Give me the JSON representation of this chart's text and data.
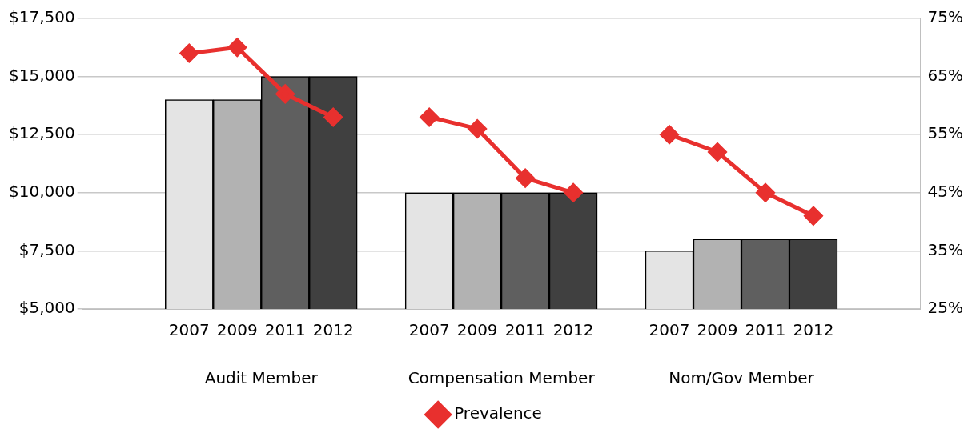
{
  "chart_data": {
    "type": "bar",
    "categories": [
      "2007",
      "2009",
      "2011",
      "2012",
      "2007",
      "2009",
      "2011",
      "2012",
      "2007",
      "2009",
      "2011",
      "2012"
    ],
    "annotations": [
      "Audit Member",
      "Compensation Member",
      "Nom/Gov Member"
    ],
    "series": [
      {
        "colors": [
          "#e4e4e4",
          "#b2b2b2",
          "#5f5f5f",
          "#404040",
          "#e4e4e4",
          "#b2b2b2",
          "#5f5f5f",
          "#404040",
          "#e4e4e4",
          "#b2b2b2",
          "#5f5f5f",
          "#404040"
        ],
        "values": [
          14000,
          14000,
          15000,
          15000,
          10000,
          10000,
          10000,
          10000,
          7500,
          8000,
          8000,
          8000
        ]
      },
      {
        "type": "line",
        "name": "Prevalence",
        "color": "#e8302e",
        "axis": "y2",
        "values": [
          69,
          70,
          62,
          58,
          58,
          56,
          47.5,
          45,
          55,
          52,
          45,
          41
        ]
      }
    ],
    "ylim": [
      5000,
      17500
    ],
    "yticks": [
      {
        "value": 5000,
        "label": "$5,000"
      },
      {
        "value": 7500,
        "label": "$7,500"
      },
      {
        "value": 10000,
        "label": "$10,000"
      },
      {
        "value": 12500,
        "label": "$12,500"
      },
      {
        "value": 15000,
        "label": "$15,000"
      },
      {
        "value": 17500,
        "label": "$17,500"
      }
    ],
    "y2lim": [
      25,
      75
    ],
    "y2ticks": [
      {
        "value": 25,
        "label": "25%"
      },
      {
        "value": 35,
        "label": "35%"
      },
      {
        "value": 45,
        "label": "45%"
      },
      {
        "value": 55,
        "label": "55%"
      },
      {
        "value": 65,
        "label": "65%"
      },
      {
        "value": 75,
        "label": "75%"
      }
    ],
    "grid": "y",
    "legend": "bottom",
    "marker": "diamond",
    "line_style": "solid"
  }
}
